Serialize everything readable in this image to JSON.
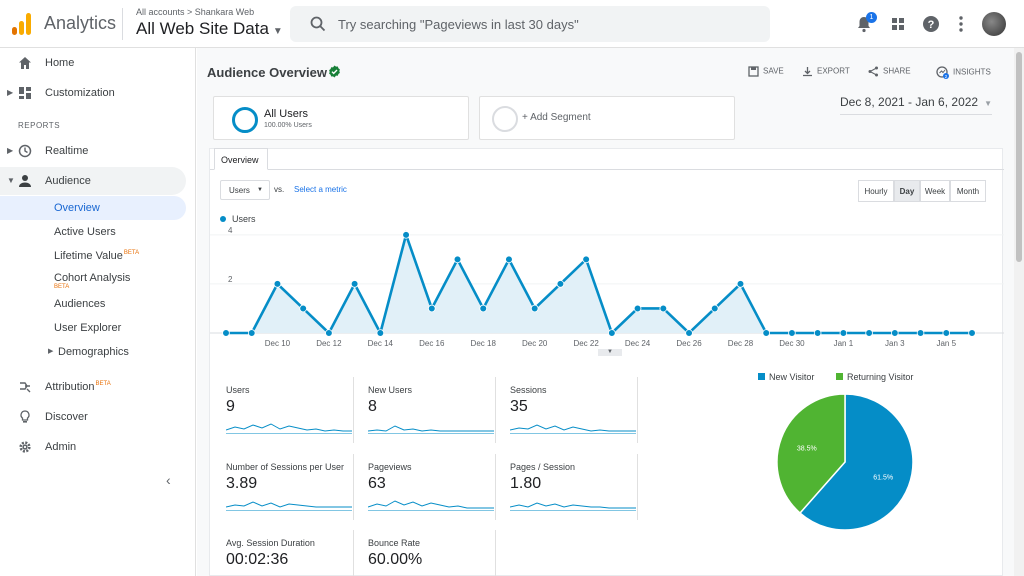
{
  "header": {
    "app_name": "Analytics",
    "breadcrumb": "All accounts > Shankara Web",
    "property": "All Web Site Data",
    "search_placeholder": "Try searching \"Pageviews in last 30 days\"",
    "notification_count": "1"
  },
  "sidebar": {
    "top_items": [
      {
        "label": "Home"
      },
      {
        "label": "Customization"
      }
    ],
    "section_label": "REPORTS",
    "report_items": [
      {
        "label": "Realtime"
      },
      {
        "label": "Audience"
      }
    ],
    "audience_sub": [
      {
        "label": "Overview"
      },
      {
        "label": "Active Users"
      },
      {
        "label": "Lifetime Value",
        "badge": "BETA"
      },
      {
        "label": "Cohort Analysis",
        "badge": "BETA"
      },
      {
        "label": "Audiences"
      },
      {
        "label": "User Explorer"
      },
      {
        "label": "Demographics"
      }
    ],
    "bottom_items": [
      {
        "label": "Attribution",
        "badge": "BETA"
      },
      {
        "label": "Discover"
      },
      {
        "label": "Admin"
      }
    ]
  },
  "report": {
    "title": "Audience Overview",
    "toolbar": {
      "save": "SAVE",
      "export": "EXPORT",
      "share": "SHARE",
      "insights": "INSIGHTS",
      "insights_count": "2"
    },
    "segments": [
      {
        "name": "All Users",
        "pct": "100.00% Users"
      },
      {
        "name": "+ Add Segment"
      }
    ],
    "date_range": "Dec 8, 2021 - Jan 6, 2022",
    "tab": "Overview",
    "metric_select": "Users",
    "vs": "vs.",
    "select_metric": "Select a metric",
    "granularity": [
      "Hourly",
      "Day",
      "Week",
      "Month"
    ],
    "granularity_selected": "Day"
  },
  "chart_data": {
    "type": "line",
    "series": [
      {
        "name": "Users",
        "values": [
          0,
          0,
          2,
          1,
          0,
          2,
          0,
          4,
          1,
          3,
          1,
          3,
          1,
          2,
          3,
          0,
          1,
          1,
          0,
          1,
          2,
          0,
          0,
          0,
          0,
          0,
          0,
          0,
          0,
          0
        ]
      }
    ],
    "x": [
      "Dec 8",
      "Dec 9",
      "Dec 10",
      "Dec 11",
      "Dec 12",
      "Dec 13",
      "Dec 14",
      "Dec 15",
      "Dec 16",
      "Dec 17",
      "Dec 18",
      "Dec 19",
      "Dec 20",
      "Dec 21",
      "Dec 22",
      "Dec 23",
      "Dec 24",
      "Dec 25",
      "Dec 26",
      "Dec 27",
      "Dec 28",
      "Dec 29",
      "Dec 30",
      "Dec 31",
      "Jan 1",
      "Jan 2",
      "Jan 3",
      "Jan 4",
      "Jan 5",
      "Jan 6"
    ],
    "x_tick_labels": [
      "Dec 10",
      "Dec 12",
      "Dec 14",
      "Dec 16",
      "Dec 18",
      "Dec 20",
      "Dec 22",
      "Dec 24",
      "Dec 26",
      "Dec 28",
      "Dec 30",
      "Jan 1",
      "Jan 3",
      "Jan 5"
    ],
    "y_tick_labels": [
      "4",
      "2"
    ],
    "ylim": [
      0,
      4.4
    ],
    "color": "#058dc7"
  },
  "metrics": [
    {
      "label": "Users",
      "value": "9"
    },
    {
      "label": "New Users",
      "value": "8"
    },
    {
      "label": "Sessions",
      "value": "35"
    },
    {
      "label": "Number of Sessions per User",
      "value": "3.89"
    },
    {
      "label": "Pageviews",
      "value": "63"
    },
    {
      "label": "Pages / Session",
      "value": "1.80"
    },
    {
      "label": "Avg. Session Duration",
      "value": "00:02:36"
    },
    {
      "label": "Bounce Rate",
      "value": "60.00%"
    }
  ],
  "pie_data": {
    "type": "pie",
    "legend": [
      "New Visitor",
      "Returning Visitor"
    ],
    "values": [
      61.5,
      38.5
    ],
    "labels": [
      "61.5%",
      "38.5%"
    ],
    "colors": [
      "#058dc7",
      "#50b432"
    ]
  }
}
